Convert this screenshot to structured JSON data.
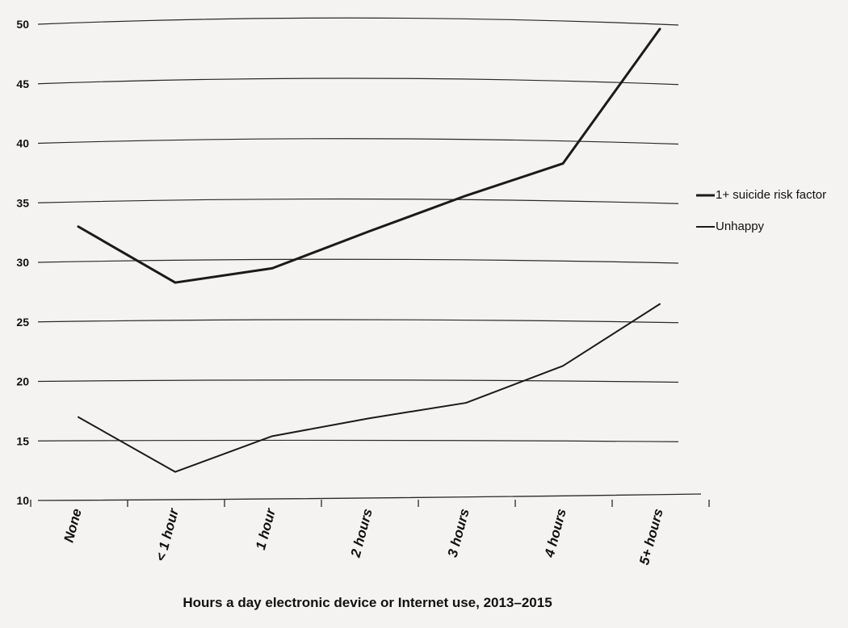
{
  "chart_data": {
    "type": "line",
    "title": "",
    "xlabel": "Hours a day electronic device or Internet use, 2013–2015",
    "ylabel": "",
    "categories": [
      "None",
      "< 1 hour",
      "1 hour",
      "2 hours",
      "3 hours",
      "4 hours",
      "5+ hours"
    ],
    "ylim": [
      10,
      50
    ],
    "yticks": [
      10,
      15,
      20,
      25,
      30,
      35,
      40,
      45,
      50
    ],
    "grid": true,
    "legend_position": "right",
    "series": [
      {
        "name": "1+ suicide risk factor",
        "values": [
          33,
          28.3,
          29.5,
          32.6,
          35.6,
          38.3,
          49.6
        ],
        "color": "#1a1a1a"
      },
      {
        "name": "Unhappy",
        "values": [
          17,
          12.4,
          15.4,
          16.9,
          18.2,
          21.3,
          26.5
        ],
        "color": "#1a1a1a"
      }
    ]
  }
}
